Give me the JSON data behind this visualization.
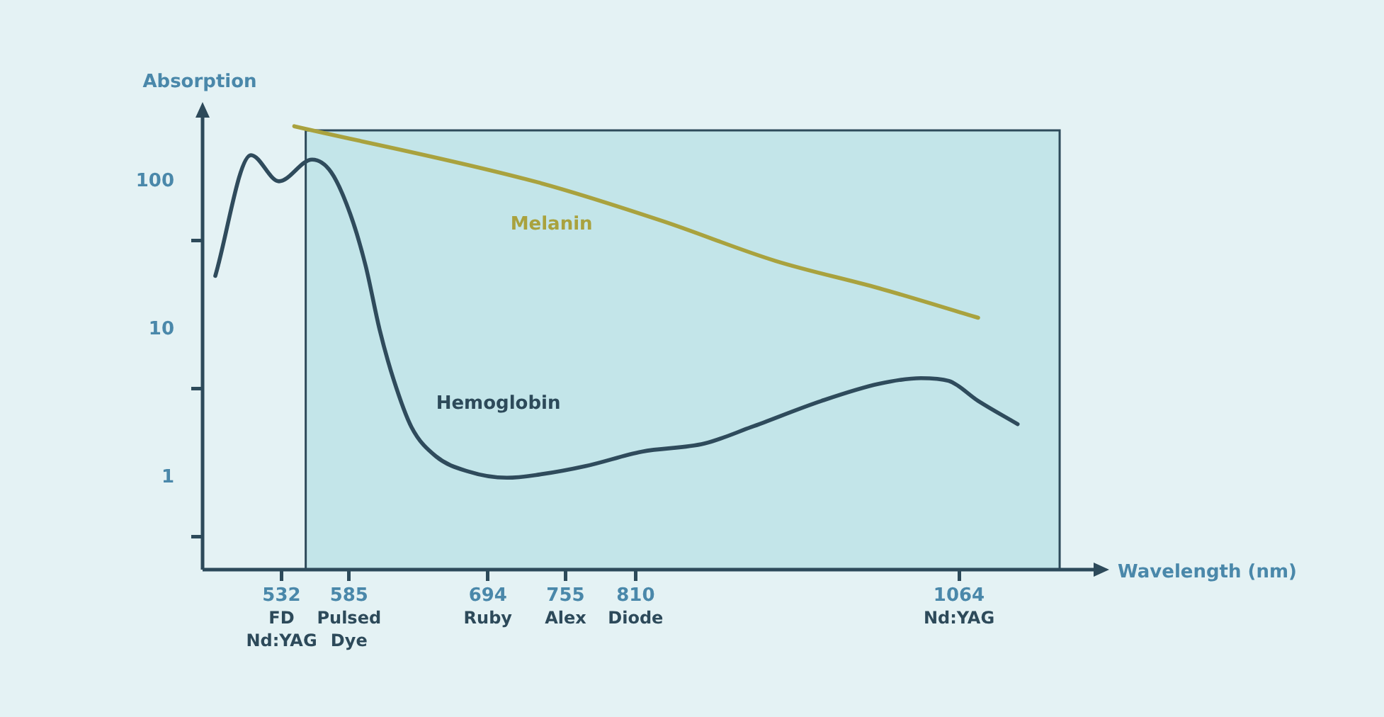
{
  "chart_data": {
    "type": "line",
    "xlabel": "Wavelength (nm)",
    "ylabel": "Absorption",
    "log": "y",
    "xlim": [
      470,
      1173
    ],
    "ylim": [
      0.24,
      300
    ],
    "xticks": [
      {
        "value": 532,
        "label": "532\nFD Nd:YAG"
      },
      {
        "value": 585,
        "label": "585\nPulsed Dye"
      },
      {
        "value": 694,
        "label": "694\nRuby"
      },
      {
        "value": 755,
        "label": "755\nAlex"
      },
      {
        "value": 810,
        "label": "810\nDiode"
      },
      {
        "value": 1064,
        "label": "1064\nNd:YAG"
      }
    ],
    "yticks": [
      {
        "value": 0.4,
        "label": null
      },
      1,
      {
        "value": 4,
        "label": null
      },
      10,
      {
        "value": 40,
        "label": null
      },
      100
    ],
    "marker": "none",
    "line_style": "solid",
    "series": [
      {
        "name": "Hemoglobin",
        "color": "#2f4b5c",
        "x": [
          480,
          508,
          530,
          556,
          571,
          586,
          598,
          609,
          620,
          634,
          653,
          679,
          709,
          734,
          771,
          815,
          864,
          901,
          956,
          1001,
          1034,
          1056,
          1079,
          1110
        ],
        "values": [
          23,
          150,
          100,
          140,
          115,
          60,
          27,
          10,
          4.6,
          2.2,
          1.4,
          1.1,
          1,
          1.05,
          1.2,
          1.5,
          1.7,
          2.2,
          3.3,
          4.3,
          4.7,
          4.5,
          3.3,
          2.3
        ]
      },
      {
        "name": "Melanin",
        "color": "#a9a23e",
        "x": [
          542,
          734,
          831,
          920,
          1001,
          1079
        ],
        "values": [
          235,
          98,
          54,
          29,
          19,
          12
        ]
      }
    ],
    "bands": [
      {
        "axis": "x",
        "from": 551,
        "to": 1143,
        "color": "#c3e5e9"
      }
    ]
  }
}
